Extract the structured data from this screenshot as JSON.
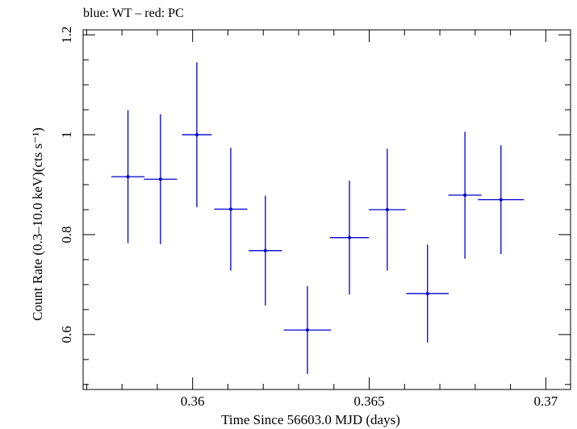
{
  "chart_data": {
    "type": "scatter",
    "title": "blue: WT – red: PC",
    "xlabel": "Time Since 56603.0 MJD (days)",
    "ylabel": "Count Rate (0.3–10.0 keV)(cts s⁻¹)",
    "xlim": [
      0.3569,
      0.3707
    ],
    "ylim": [
      0.49,
      1.21
    ],
    "x_ticks": [
      {
        "value": 0.36,
        "label": "0.36"
      },
      {
        "value": 0.365,
        "label": "0.365"
      },
      {
        "value": 0.37,
        "label": "0.37"
      }
    ],
    "y_ticks": [
      {
        "value": 0.6,
        "label": "0.6"
      },
      {
        "value": 0.8,
        "label": "0.8"
      },
      {
        "value": 1.0,
        "label": "1"
      },
      {
        "value": 1.2,
        "label": "1.2"
      }
    ],
    "grid": false,
    "series": [
      {
        "color": "#0000cc",
        "points": [
          {
            "x": 0.35817,
            "y": 0.916,
            "xerr": 0.00047,
            "yerr_lo": 0.133,
            "yerr_hi": 0.133
          },
          {
            "x": 0.35909,
            "y": 0.911,
            "xerr": 0.00047,
            "yerr_lo": 0.13,
            "yerr_hi": 0.13
          },
          {
            "x": 0.36012,
            "y": 1.0,
            "xerr": 0.00042,
            "yerr_lo": 0.145,
            "yerr_hi": 0.145
          },
          {
            "x": 0.36108,
            "y": 0.851,
            "xerr": 0.00047,
            "yerr_lo": 0.123,
            "yerr_hi": 0.123
          },
          {
            "x": 0.36206,
            "y": 0.768,
            "xerr": 0.00047,
            "yerr_lo": 0.11,
            "yerr_hi": 0.11
          },
          {
            "x": 0.36325,
            "y": 0.609,
            "xerr": 0.00067,
            "yerr_lo": 0.088,
            "yerr_hi": 0.088
          },
          {
            "x": 0.36444,
            "y": 0.794,
            "xerr": 0.00055,
            "yerr_lo": 0.114,
            "yerr_hi": 0.114
          },
          {
            "x": 0.36551,
            "y": 0.85,
            "xerr": 0.00052,
            "yerr_lo": 0.122,
            "yerr_hi": 0.122
          },
          {
            "x": 0.36665,
            "y": 0.682,
            "xerr": 0.0006,
            "yerr_lo": 0.098,
            "yerr_hi": 0.098
          },
          {
            "x": 0.36771,
            "y": 0.879,
            "xerr": 0.00047,
            "yerr_lo": 0.127,
            "yerr_hi": 0.127
          },
          {
            "x": 0.36873,
            "y": 0.87,
            "xerr": 0.00065,
            "yerr_lo": 0.109,
            "yerr_hi": 0.109
          }
        ]
      }
    ]
  }
}
